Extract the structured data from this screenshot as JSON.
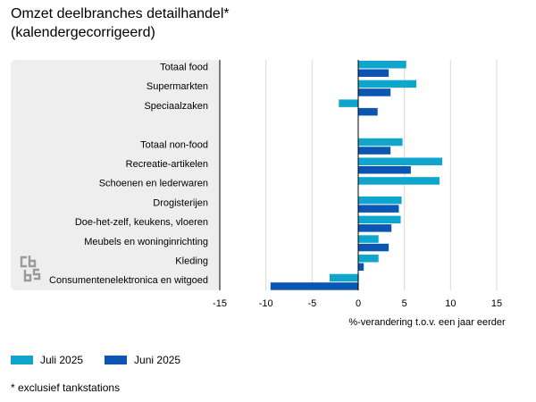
{
  "title_line1": "Omzet deelbranches detailhandel*",
  "title_line2": "(kalendergecorrigeerd)",
  "footnote": "* exclusief tankstations",
  "colors": {
    "july": "#0fa5cc",
    "june": "#0b55b3",
    "panel": "#eeeeee",
    "grid": "#d9d9d9",
    "axis": "#000000"
  },
  "logo_icon": "cbs-logo-icon",
  "chart_data": {
    "type": "bar",
    "orientation": "horizontal",
    "categories": [
      "Totaal food",
      "Supermarkten",
      "Speciaalzaken",
      "",
      "Totaal non-food",
      "Recreatie-artikelen",
      "Schoenen en lederwaren",
      "Drogisterijen",
      "Doe-het-zelf, keukens, vloeren",
      "Meubels en woninginrichting",
      "Kleding",
      "Consumentenelektronica en witgoed"
    ],
    "series": [
      {
        "name": "Juli 2025",
        "color": "#0fa5cc",
        "values": [
          5.2,
          6.3,
          -2.1,
          null,
          4.8,
          9.1,
          8.8,
          4.7,
          4.6,
          2.2,
          2.2,
          -3.1
        ]
      },
      {
        "name": "Juni 2025",
        "color": "#0b55b3",
        "values": [
          3.3,
          3.5,
          2.1,
          null,
          3.5,
          5.7,
          null,
          4.4,
          3.6,
          3.3,
          0.6,
          -9.5
        ]
      }
    ],
    "xlabel": "%-verandering t.o.v. een jaar eerder",
    "xlim": [
      -15,
      15
    ],
    "xticks": [
      -15,
      -10,
      -5,
      0,
      5,
      10,
      15
    ],
    "grid": true,
    "legend": "bottom-left"
  }
}
